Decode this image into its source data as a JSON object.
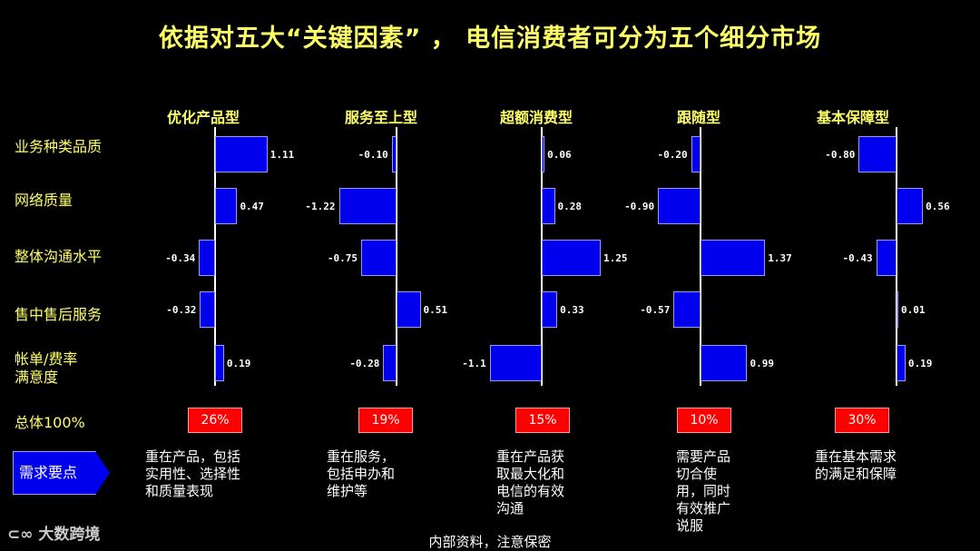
{
  "title": "依据对五大“关键因素” ， 电信消费者可分为五个细分市场",
  "footer": "内部资料，注意保密",
  "watermark": "大数跨境",
  "colors": {
    "title": "#ffff66",
    "bar": "#0000ee",
    "percent_box": "#ff0000",
    "background": "#000000"
  },
  "total_label": "总体100%",
  "key_label": "需求要点",
  "chart_data": {
    "type": "bar",
    "orientation": "horizontal",
    "categories": [
      "业务种类品质",
      "网络质量",
      "整体沟通水平",
      "售中售后服务",
      "帐单/费率满意度"
    ],
    "category_labels": [
      [
        "业务种类品质"
      ],
      [
        "网络质量"
      ],
      [
        "整体沟通水平"
      ],
      [
        "售中售后服务"
      ],
      [
        "帐单/费率",
        "满意度"
      ]
    ],
    "series": [
      {
        "name": "优化产品型",
        "values": [
          1.11,
          0.47,
          -0.34,
          -0.32,
          0.19
        ],
        "labels": [
          "1.11",
          "0.47",
          "-0.34",
          "-0.32",
          "0.19"
        ],
        "share": "26%",
        "note": [
          "重在产品，包括",
          "实用性、选择性",
          "和质量表现"
        ]
      },
      {
        "name": "服务至上型",
        "values": [
          -0.1,
          -1.22,
          -0.75,
          0.51,
          -0.28
        ],
        "labels": [
          "-0.10",
          "-1.22",
          "-0.75",
          "0.51",
          "-0.28"
        ],
        "share": "19%",
        "note": [
          "重在服务，",
          "包括申办和",
          "维护等"
        ]
      },
      {
        "name": "超额消费型",
        "values": [
          0.06,
          0.28,
          1.25,
          0.33,
          -1.1
        ],
        "labels": [
          "0.06",
          "0.28",
          "1.25",
          "0.33",
          "-1.1"
        ],
        "share": "15%",
        "note": [
          "重在产品获",
          "取最大化和",
          "电信的有效",
          "沟通"
        ]
      },
      {
        "name": "跟随型",
        "values": [
          -0.2,
          -0.9,
          1.37,
          -0.57,
          0.99
        ],
        "labels": [
          "-0.20",
          "-0.90",
          "1.37",
          "-0.57",
          "0.99"
        ],
        "share": "10%",
        "note": [
          "需要产品",
          "切合使",
          "用，同时",
          "有效推广",
          "说服"
        ]
      },
      {
        "name": "基本保障型",
        "values": [
          -0.8,
          0.56,
          -0.43,
          0.01,
          0.19
        ],
        "labels": [
          "-0.80",
          "0.56",
          "-0.43",
          "0.01",
          "0.19"
        ],
        "share": "30%",
        "note": [
          "重在基本需求",
          "的满足和保障"
        ]
      }
    ]
  }
}
